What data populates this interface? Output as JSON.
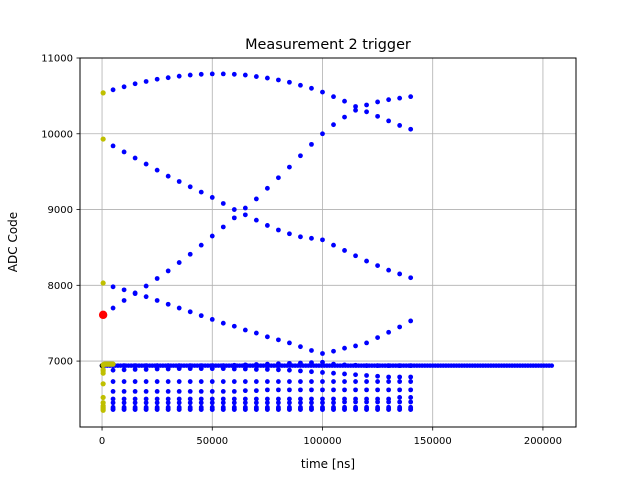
{
  "chart_data": {
    "type": "scatter",
    "title": "Measurement 2 trigger",
    "xlabel": "time [ns]",
    "ylabel": "ADC Code",
    "xlim": [
      -10000,
      215000
    ],
    "ylim": [
      6130,
      11000
    ],
    "xticks": [
      0,
      50000,
      100000,
      150000,
      200000
    ],
    "xtick_labels": [
      "0",
      "50000",
      "100000",
      "150000",
      "200000"
    ],
    "yticks": [
      7000,
      8000,
      9000,
      10000,
      11000
    ],
    "ytick_labels": [
      "7000",
      "8000",
      "9000",
      "10000",
      "11000"
    ],
    "grid": true,
    "legend": "none",
    "colors": {
      "main": "#0000ff",
      "start": "#bfbf00",
      "marker": "#ff0000",
      "baseline": "#000000"
    },
    "series": [
      {
        "role": "curve",
        "color": "#0000ff",
        "x": [
          5000,
          10000,
          15000,
          20000,
          25000,
          30000,
          35000,
          40000,
          45000,
          50000,
          55000,
          60000,
          65000,
          70000,
          75000,
          80000,
          85000,
          90000,
          95000,
          100000,
          105000,
          110000,
          115000,
          120000,
          125000,
          130000,
          135000,
          140000
        ],
        "y": [
          10580,
          10620,
          10660,
          10690,
          10720,
          10740,
          10760,
          10775,
          10785,
          10790,
          10790,
          10785,
          10775,
          10755,
          10735,
          10710,
          10680,
          10640,
          10600,
          10550,
          10490,
          10430,
          10360,
          10290,
          10230,
          10170,
          10110,
          10060
        ]
      },
      {
        "role": "curve",
        "color": "#0000ff",
        "x": [
          5000,
          10000,
          15000,
          20000,
          25000,
          30000,
          35000,
          40000,
          45000,
          50000,
          55000,
          60000,
          65000,
          70000,
          75000,
          80000,
          85000,
          90000,
          95000,
          100000,
          105000,
          110000,
          115000,
          120000,
          125000,
          130000,
          135000,
          140000
        ],
        "y": [
          9840,
          9760,
          9680,
          9600,
          9520,
          9440,
          9370,
          9300,
          9230,
          9160,
          9080,
          9000,
          8930,
          8860,
          8790,
          8730,
          8680,
          8640,
          8620,
          8600,
          8530,
          8460,
          8390,
          8320,
          8260,
          8200,
          8150,
          8100
        ]
      },
      {
        "role": "curve",
        "color": "#0000ff",
        "x": [
          5000,
          10000,
          15000,
          20000,
          25000,
          30000,
          35000,
          40000,
          45000,
          50000,
          55000,
          60000,
          65000,
          70000,
          75000,
          80000,
          85000,
          90000,
          95000,
          100000,
          105000,
          110000,
          115000,
          120000,
          125000,
          130000,
          135000,
          140000
        ],
        "y": [
          7700,
          7800,
          7890,
          7990,
          8090,
          8190,
          8300,
          8410,
          8530,
          8650,
          8770,
          8890,
          9020,
          9140,
          9280,
          9420,
          9560,
          9710,
          9860,
          10000,
          10120,
          10220,
          10310,
          10380,
          10420,
          10450,
          10470,
          10490
        ]
      },
      {
        "role": "curve",
        "color": "#0000ff",
        "x": [
          5000,
          10000,
          15000,
          20000,
          25000,
          30000,
          35000,
          40000,
          45000,
          50000,
          55000,
          60000,
          65000,
          70000,
          75000,
          80000,
          85000,
          90000,
          95000,
          100000,
          105000,
          110000,
          115000,
          120000,
          125000,
          130000,
          135000,
          140000
        ],
        "y": [
          7980,
          7940,
          7900,
          7850,
          7800,
          7750,
          7700,
          7650,
          7600,
          7550,
          7500,
          7460,
          7410,
          7370,
          7320,
          7280,
          7240,
          7190,
          7140,
          7100,
          7130,
          7170,
          7200,
          7240,
          7310,
          7380,
          7450,
          7530
        ]
      },
      {
        "role": "band",
        "color": "#0000ff",
        "x": [
          5000,
          10000,
          15000,
          20000,
          25000,
          30000,
          35000,
          40000,
          45000,
          50000,
          55000,
          60000,
          65000,
          70000,
          75000,
          80000,
          85000,
          90000,
          95000,
          100000,
          105000,
          110000,
          115000,
          120000,
          125000,
          130000,
          135000,
          140000
        ],
        "y": [
          6940,
          6940,
          6940,
          6940,
          6940,
          6940,
          6940,
          6940,
          6940,
          6940,
          6940,
          6945,
          6950,
          6955,
          6960,
          6965,
          6970,
          6975,
          6980,
          6985,
          6960,
          6950,
          6945,
          6940,
          6940,
          6940,
          6940,
          6940
        ]
      },
      {
        "role": "band",
        "color": "#0000ff",
        "x": [
          5000,
          10000,
          15000,
          20000,
          25000,
          30000,
          35000,
          40000,
          45000,
          50000,
          55000,
          60000,
          65000,
          70000,
          75000,
          80000,
          85000,
          90000,
          95000,
          100000,
          105000,
          110000,
          115000,
          120000,
          125000,
          130000,
          135000,
          140000
        ],
        "y": [
          6880,
          6885,
          6890,
          6890,
          6895,
          6895,
          6900,
          6900,
          6900,
          6900,
          6900,
          6895,
          6895,
          6890,
          6890,
          6885,
          6880,
          6870,
          6860,
          6850,
          6840,
          6830,
          6820,
          6810,
          6800,
          6790,
          6790,
          6790
        ]
      },
      {
        "role": "band",
        "color": "#0000ff",
        "x": [
          5000,
          10000,
          15000,
          20000,
          25000,
          30000,
          35000,
          40000,
          45000,
          50000,
          55000,
          60000,
          65000,
          70000,
          75000,
          80000,
          85000,
          90000,
          95000,
          100000,
          105000,
          110000,
          115000,
          120000,
          125000,
          130000,
          135000,
          140000
        ],
        "y": [
          6730,
          6730,
          6730,
          6730,
          6730,
          6730,
          6730,
          6730,
          6730,
          6730,
          6730,
          6730,
          6730,
          6730,
          6730,
          6730,
          6730,
          6730,
          6730,
          6730,
          6730,
          6730,
          6730,
          6730,
          6730,
          6730,
          6730,
          6730
        ]
      },
      {
        "role": "band",
        "color": "#0000ff",
        "x": [
          5000,
          10000,
          15000,
          20000,
          25000,
          30000,
          35000,
          40000,
          45000,
          50000,
          55000,
          60000,
          65000,
          70000,
          75000,
          80000,
          85000,
          90000,
          95000,
          100000,
          105000,
          110000,
          115000,
          120000,
          125000,
          130000,
          135000,
          140000
        ],
        "y": [
          6600,
          6600,
          6600,
          6600,
          6600,
          6600,
          6600,
          6600,
          6600,
          6600,
          6600,
          6600,
          6610,
          6610,
          6620,
          6620,
          6620,
          6620,
          6620,
          6620,
          6620,
          6620,
          6620,
          6620,
          6620,
          6620,
          6620,
          6620
        ]
      },
      {
        "role": "band",
        "color": "#0000ff",
        "x": [
          5000,
          10000,
          15000,
          20000,
          25000,
          30000,
          35000,
          40000,
          45000,
          50000,
          55000,
          60000,
          65000,
          70000,
          75000,
          80000,
          85000,
          90000,
          95000,
          100000,
          105000,
          110000,
          115000,
          120000,
          125000,
          130000,
          135000,
          140000
        ],
        "y": [
          6500,
          6500,
          6500,
          6500,
          6500,
          6500,
          6500,
          6500,
          6500,
          6500,
          6500,
          6500,
          6500,
          6500,
          6500,
          6500,
          6500,
          6500,
          6500,
          6500,
          6500,
          6500,
          6500,
          6500,
          6500,
          6500,
          6520,
          6520
        ]
      },
      {
        "role": "band",
        "color": "#0000ff",
        "x": [
          5000,
          10000,
          15000,
          20000,
          25000,
          30000,
          35000,
          40000,
          45000,
          50000,
          55000,
          60000,
          65000,
          70000,
          75000,
          80000,
          85000,
          90000,
          95000,
          100000,
          105000,
          110000,
          115000,
          120000,
          125000,
          130000,
          135000,
          140000
        ],
        "y": [
          6450,
          6450,
          6450,
          6450,
          6450,
          6450,
          6450,
          6450,
          6450,
          6450,
          6450,
          6450,
          6450,
          6450,
          6450,
          6450,
          6450,
          6450,
          6450,
          6450,
          6450,
          6460,
          6460,
          6460,
          6460,
          6460,
          6460,
          6460
        ]
      },
      {
        "role": "band",
        "color": "#0000ff",
        "x": [
          5000,
          10000,
          15000,
          20000,
          25000,
          30000,
          35000,
          40000,
          45000,
          50000,
          55000,
          60000,
          65000,
          70000,
          75000,
          80000,
          85000,
          90000,
          95000,
          100000,
          105000,
          110000,
          115000,
          120000,
          125000,
          130000,
          135000,
          140000
        ],
        "y": [
          6390,
          6390,
          6390,
          6390,
          6390,
          6390,
          6390,
          6390,
          6390,
          6390,
          6390,
          6390,
          6390,
          6390,
          6390,
          6390,
          6390,
          6390,
          6390,
          6390,
          6390,
          6390,
          6390,
          6390,
          6390,
          6390,
          6390,
          6390
        ]
      },
      {
        "role": "band",
        "color": "#0000ff",
        "x": [
          5000,
          10000,
          15000,
          20000,
          25000,
          30000,
          35000,
          40000,
          45000,
          50000,
          55000,
          60000,
          65000,
          70000,
          75000,
          80000,
          85000,
          90000,
          95000,
          100000,
          105000,
          110000,
          115000,
          120000,
          125000,
          130000,
          135000,
          140000
        ],
        "y": [
          6370,
          6370,
          6370,
          6370,
          6370,
          6370,
          6370,
          6370,
          6370,
          6370,
          6370,
          6370,
          6370,
          6370,
          6370,
          6370,
          6370,
          6370,
          6370,
          6370,
          6370,
          6370,
          6370,
          6370,
          6370,
          6370,
          6370,
          6370
        ]
      },
      {
        "role": "band",
        "color": "#0000ff",
        "x": [
          5000,
          10000,
          15000,
          20000,
          25000,
          30000,
          35000,
          40000,
          45000,
          50000,
          55000,
          60000,
          65000,
          70000,
          75000,
          80000,
          85000,
          90000,
          95000,
          100000,
          105000,
          110000,
          115000,
          120000,
          125000,
          130000,
          135000,
          140000
        ],
        "y": [
          6360,
          6360,
          6360,
          6360,
          6360,
          6360,
          6360,
          6360,
          6360,
          6360,
          6360,
          6360,
          6360,
          6360,
          6360,
          6360,
          6360,
          6360,
          6360,
          6360,
          6360,
          6360,
          6360,
          6360,
          6360,
          6360,
          6360,
          6360
        ]
      },
      {
        "role": "dense-line",
        "color": "#0000ff",
        "x_start": 0,
        "x_end": 204000,
        "x_step": 1200,
        "y": 6940
      },
      {
        "role": "baseline",
        "color": "#000000",
        "x": [
          0
        ],
        "y": [
          6940
        ]
      },
      {
        "role": "start",
        "color": "#bfbf00",
        "x": [
          500,
          500,
          500,
          500,
          500,
          500,
          500,
          500,
          500,
          500,
          500,
          500,
          500,
          500,
          1000,
          1500,
          2000,
          2500,
          3000,
          3500,
          4000,
          4500,
          5000
        ],
        "y": [
          10540,
          9930,
          8030,
          6950,
          6890,
          6870,
          6840,
          6700,
          6520,
          6450,
          6410,
          6390,
          6370,
          6350,
          6960,
          6960,
          6960,
          6960,
          6960,
          6960,
          6960,
          6960,
          6960
        ]
      },
      {
        "role": "marker",
        "color": "#ff0000",
        "x": [
          500
        ],
        "y": [
          7610
        ]
      }
    ]
  }
}
